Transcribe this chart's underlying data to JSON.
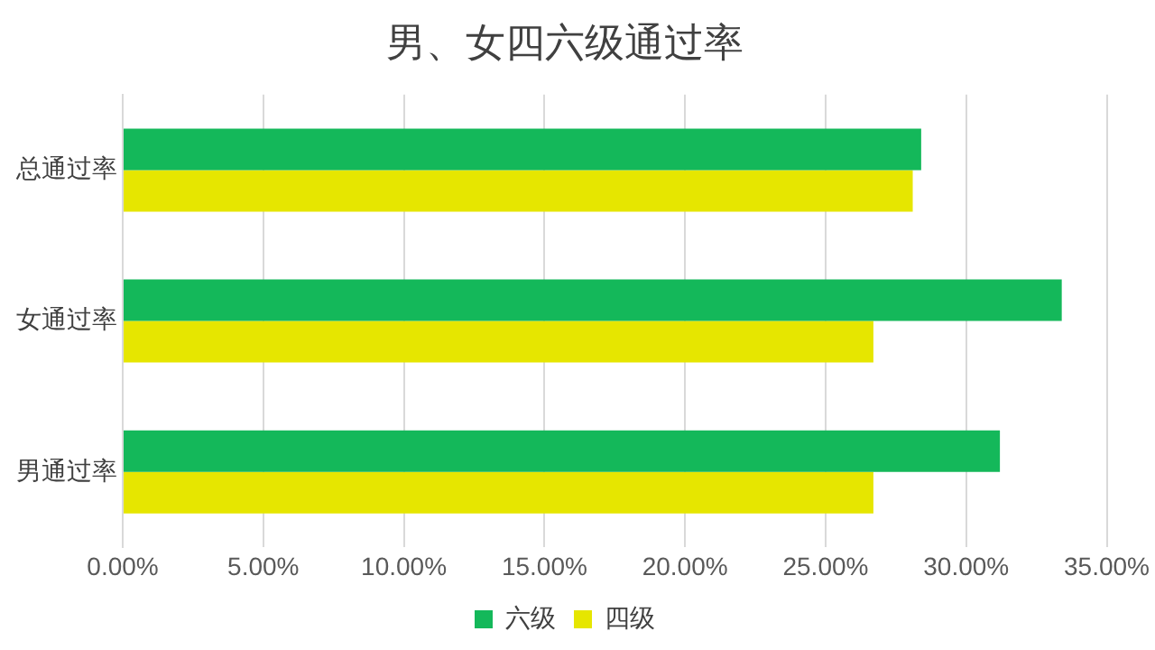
{
  "chart_data": {
    "type": "bar",
    "orientation": "horizontal",
    "title": "男、女四六级通过率",
    "categories": [
      "总通过率",
      "女通过率",
      "男通过率"
    ],
    "series": [
      {
        "name": "六级",
        "color": "#14b85a",
        "values": [
          28.4,
          33.4,
          31.2
        ]
      },
      {
        "name": "四级",
        "color": "#e6e600",
        "values": [
          28.1,
          26.7,
          26.7
        ]
      }
    ],
    "xlim": [
      0,
      35
    ],
    "xticks": [
      {
        "value": 0,
        "label": "0.00%"
      },
      {
        "value": 5,
        "label": "5.00%"
      },
      {
        "value": 10,
        "label": "10.00%"
      },
      {
        "value": 15,
        "label": "15.00%"
      },
      {
        "value": 20,
        "label": "20.00%"
      },
      {
        "value": 25,
        "label": "25.00%"
      },
      {
        "value": 30,
        "label": "30.00%"
      },
      {
        "value": 35,
        "label": "35.00%"
      }
    ],
    "grid": "x",
    "legend": "bottom"
  }
}
